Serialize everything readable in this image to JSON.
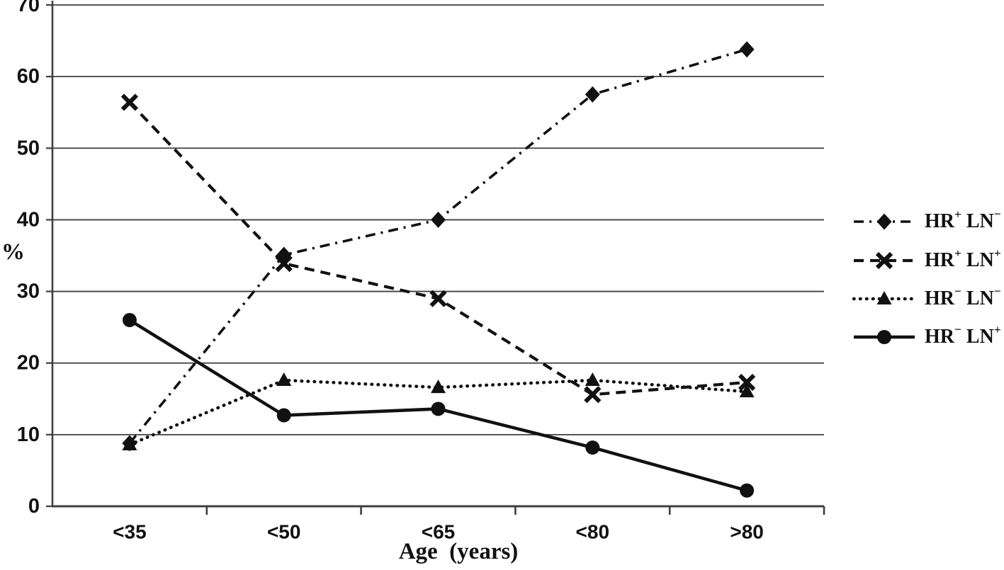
{
  "chart_data": {
    "type": "line",
    "xlabel": "Age  (years)",
    "ylabel": "%",
    "categories": [
      "<35",
      "<50",
      "<65",
      "<80",
      ">80"
    ],
    "ylim": [
      0,
      70
    ],
    "yticks": [
      0,
      10,
      20,
      30,
      40,
      50,
      60,
      70
    ],
    "grid": true,
    "legend_position": "right",
    "ink_color": "#111111",
    "grid_color": "#3f3f3f",
    "series": [
      {
        "name": "HR+ LN-",
        "marker": "diamond",
        "line_style": "dash-dot",
        "values": [
          8.8,
          35.1,
          40.0,
          57.5,
          63.8
        ]
      },
      {
        "name": "HR+ LN+",
        "marker": "x",
        "line_style": "dashed",
        "values": [
          56.4,
          33.9,
          29.0,
          15.6,
          17.3
        ]
      },
      {
        "name": "HR- LN-",
        "marker": "triangle",
        "line_style": "dotted",
        "values": [
          8.6,
          17.6,
          16.6,
          17.6,
          16.0
        ]
      },
      {
        "name": "HR- LN+",
        "marker": "circle",
        "line_style": "solid",
        "values": [
          26.0,
          12.7,
          13.6,
          8.2,
          2.2
        ]
      }
    ]
  }
}
